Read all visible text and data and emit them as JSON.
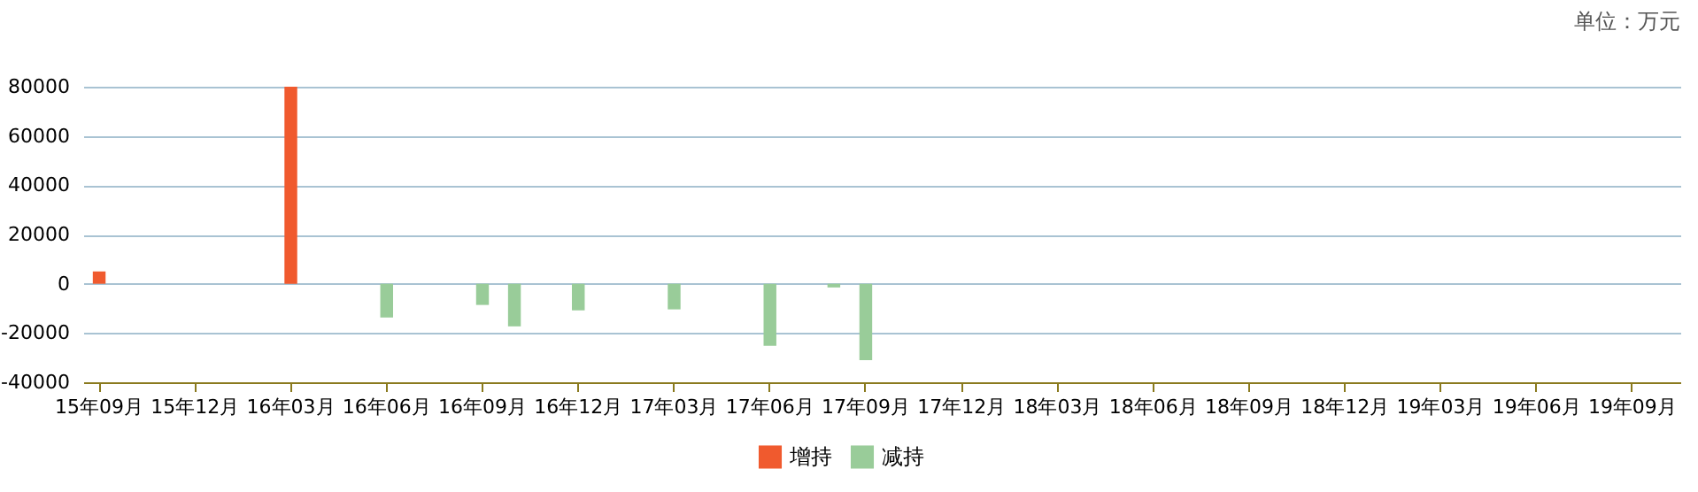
{
  "chart_data": {
    "type": "bar",
    "annotations": [
      "单位：万元"
    ],
    "categories": [
      "15年09月",
      null,
      null,
      "15年12月",
      null,
      null,
      "16年03月",
      null,
      null,
      "16年06月",
      null,
      null,
      "16年09月",
      null,
      null,
      "16年12月",
      null,
      null,
      "17年03月",
      null,
      null,
      "17年06月",
      null,
      null,
      "17年09月",
      null,
      null,
      "17年12月",
      null,
      null,
      "18年03月",
      null,
      null,
      "18年06月",
      null,
      null,
      "18年09月",
      null,
      null,
      "18年12月",
      null,
      null,
      "19年03月",
      null,
      null,
      "19年06月",
      null,
      null,
      "19年09月",
      null
    ],
    "series": [
      {
        "name": "增持",
        "color": "#f05a2e",
        "values": [
          5000,
          null,
          null,
          null,
          null,
          null,
          80000,
          null,
          null,
          null,
          null,
          null,
          null,
          null,
          null,
          null,
          null,
          null,
          null,
          null,
          null,
          null,
          null,
          null,
          null,
          null,
          null,
          null,
          null,
          null,
          null,
          null,
          null,
          null,
          null,
          null,
          null,
          null,
          null,
          null,
          null,
          null,
          null,
          null,
          null,
          null,
          null,
          null,
          null,
          null
        ]
      },
      {
        "name": "减持",
        "color": "#99cc99",
        "values": [
          null,
          null,
          null,
          null,
          null,
          null,
          null,
          null,
          null,
          -13700,
          null,
          null,
          -8600,
          -17300,
          null,
          -10800,
          null,
          null,
          -10400,
          null,
          null,
          -25200,
          null,
          -1500,
          -31000,
          null,
          null,
          null,
          null,
          null,
          null,
          null,
          null,
          null,
          null,
          null,
          null,
          null,
          null,
          null,
          null,
          null,
          null,
          null,
          null,
          null,
          null,
          null,
          null,
          null
        ]
      }
    ],
    "ylim": [
      -40000,
      80000
    ],
    "yticks": [
      -40000,
      -20000,
      0,
      20000,
      40000,
      60000,
      80000
    ],
    "grid": "y",
    "legend": "bottom"
  }
}
